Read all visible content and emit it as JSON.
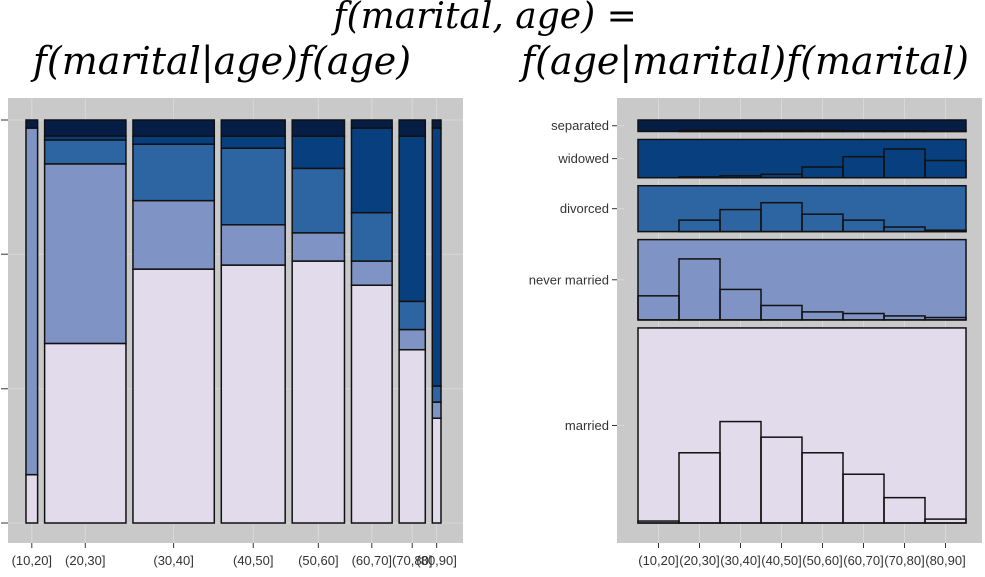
{
  "title": {
    "line1": "f(marital, age) =",
    "left": "f(marital|age)f(age)",
    "right": "f(age|marital)f(marital)"
  },
  "colors": {
    "panel_bg": "#c9c9c9",
    "grid": "#d8d8d8",
    "married": "#e2dbec",
    "never married": "#7f93c4",
    "divorced": "#2d64a2",
    "widowed": "#08407f",
    "separated": "#061e46",
    "outline": "#111111"
  },
  "chart_data": [
    {
      "type": "mosaic",
      "categories": [
        "(10,20]",
        "(20,30]",
        "(30,40]",
        "(40,50]",
        "(50,60]",
        "(60,70]",
        "(70,80]",
        "(80,90]"
      ],
      "age_share": [
        0.02,
        0.14,
        0.14,
        0.11,
        0.09,
        0.07,
        0.045,
        0.015
      ],
      "stack_order": [
        "married",
        "never married",
        "divorced",
        "widowed",
        "separated"
      ],
      "series": [
        {
          "name": "married",
          "values": [
            0.12,
            0.45,
            0.63,
            0.64,
            0.65,
            0.59,
            0.43,
            0.26
          ]
        },
        {
          "name": "never married",
          "values": [
            0.86,
            0.45,
            0.17,
            0.1,
            0.07,
            0.06,
            0.05,
            0.04
          ]
        },
        {
          "name": "divorced",
          "values": [
            0.0,
            0.06,
            0.14,
            0.19,
            0.16,
            0.12,
            0.07,
            0.04
          ]
        },
        {
          "name": "widowed",
          "values": [
            0.0,
            0.01,
            0.02,
            0.03,
            0.08,
            0.21,
            0.41,
            0.64
          ]
        },
        {
          "name": "separated",
          "values": [
            0.02,
            0.04,
            0.04,
            0.04,
            0.04,
            0.02,
            0.04,
            0.02
          ]
        }
      ]
    },
    {
      "type": "bar",
      "categories": [
        "(10,20]",
        "(20,30]",
        "(30,40]",
        "(40,50]",
        "(50,60]",
        "(60,70]",
        "(70,80]",
        "(80,90]"
      ],
      "series": [
        {
          "name": "married",
          "share": 0.51,
          "values": [
            0.01,
            0.36,
            0.52,
            0.44,
            0.36,
            0.25,
            0.13,
            0.02
          ]
        },
        {
          "name": "never married",
          "share": 0.21,
          "values": [
            0.3,
            0.76,
            0.38,
            0.18,
            0.1,
            0.08,
            0.05,
            0.03
          ]
        },
        {
          "name": "divorced",
          "share": 0.12,
          "values": [
            0.0,
            0.25,
            0.48,
            0.63,
            0.38,
            0.25,
            0.1,
            0.03
          ]
        },
        {
          "name": "widowed",
          "share": 0.1,
          "values": [
            0.0,
            0.02,
            0.05,
            0.09,
            0.28,
            0.55,
            0.75,
            0.45
          ]
        },
        {
          "name": "separated",
          "share": 0.03,
          "values": [
            0.0,
            0.1,
            0.1,
            0.1,
            0.1,
            0.05,
            0.05,
            0.02
          ]
        }
      ]
    }
  ]
}
